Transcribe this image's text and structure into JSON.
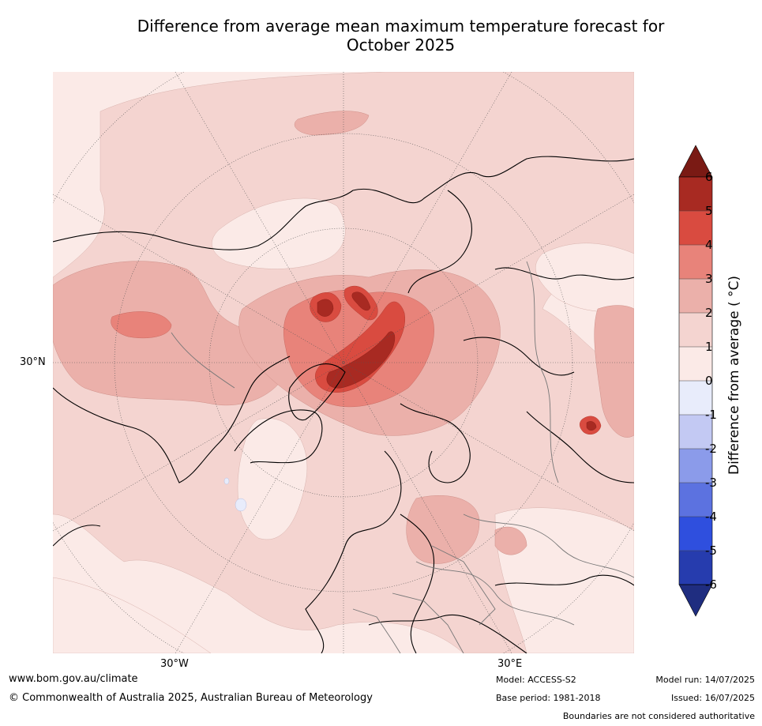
{
  "title_line1": "Difference from average mean maximum temperature forecast for",
  "title_line2": "October 2025",
  "map": {
    "lat_labels": [
      "30°N"
    ],
    "lon_labels": [
      "30°W",
      "30°E"
    ]
  },
  "colorbar": {
    "label": "Difference from average ( °C)",
    "ticks": [
      "6",
      "5",
      "4",
      "3",
      "2",
      "1",
      "0",
      "-1",
      "-2",
      "-3",
      "-4",
      "-5",
      "-6"
    ],
    "colors": {
      "above6": "#7a1a14",
      "5to6": "#a82a22",
      "4to5": "#d94b40",
      "3to4": "#e8837a",
      "2to3": "#ebb0aa",
      "1to2": "#f4d4d0",
      "0to1": "#fbeae7",
      "m1to0": "#e8ecfb",
      "m2tom1": "#c3c9f3",
      "m3tom2": "#8b9bea",
      "m4tom3": "#5c72e0",
      "m5tom4": "#2f4fde",
      "m6tom5": "#263cae",
      "below-6": "#1f2d80"
    }
  },
  "footer": {
    "website": "www.bom.gov.au/climate",
    "copyright": "© Commonwealth of Australia 2025, Australian Bureau of Meteorology",
    "model": "Model: ACCESS-S2",
    "base_period": "Base period: 1981-2018",
    "model_run": "Model run: 14/07/2025",
    "issued": "Issued: 16/07/2025",
    "disclaimer": "Boundaries are not considered authoritative"
  }
}
